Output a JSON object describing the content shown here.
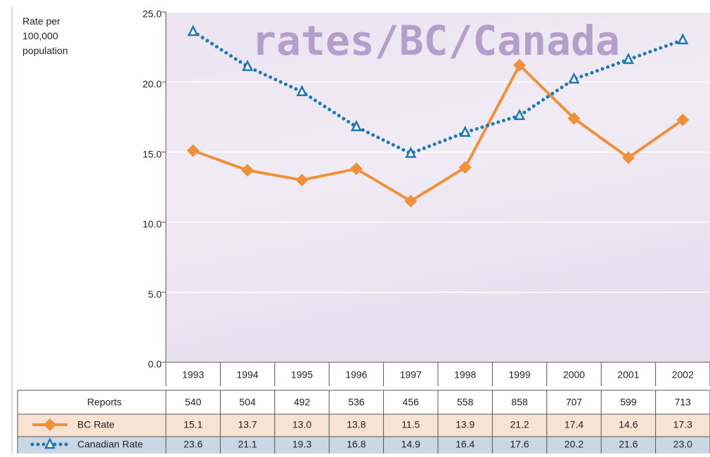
{
  "chart_data": {
    "type": "line",
    "title": "rates/BC/Canada",
    "y_label": "Rate per 100,000 population",
    "categories": [
      "1993",
      "1994",
      "1995",
      "1996",
      "1997",
      "1998",
      "1999",
      "2000",
      "2001",
      "2002"
    ],
    "ylim": [
      0,
      25
    ],
    "yticks": [
      {
        "value": 0,
        "label": "0.0"
      },
      {
        "value": 5,
        "label": "5.0"
      },
      {
        "value": 10,
        "label": "10.0"
      },
      {
        "value": 15,
        "label": "15.0"
      },
      {
        "value": 20,
        "label": "20.0"
      },
      {
        "value": 25,
        "label": "25.0"
      }
    ],
    "grid": true,
    "reports": {
      "name": "Reports",
      "values": [
        540,
        504,
        492,
        536,
        456,
        558,
        858,
        707,
        599,
        713
      ]
    },
    "series": [
      {
        "name": "BC Rate",
        "color": "#f0913a",
        "marker": "diamond",
        "values": [
          15.1,
          13.7,
          13.0,
          13.8,
          11.5,
          13.9,
          21.2,
          17.4,
          14.6,
          17.3
        ],
        "value_labels": [
          "15.1",
          "13.7",
          "13.0",
          "13.8",
          "11.5",
          "13.9",
          "21.2",
          "17.4",
          "14.6",
          "17.3"
        ]
      },
      {
        "name": "Canadian Rate",
        "color": "#1a78b4",
        "marker": "triangle",
        "dotted": true,
        "values": [
          23.6,
          21.1,
          19.3,
          16.8,
          14.9,
          16.4,
          17.6,
          20.2,
          21.6,
          23.0
        ],
        "value_labels": [
          "23.6",
          "21.1",
          "19.3",
          "16.8",
          "14.9",
          "16.4",
          "17.6",
          "20.2",
          "21.6",
          "23.0"
        ]
      }
    ]
  }
}
